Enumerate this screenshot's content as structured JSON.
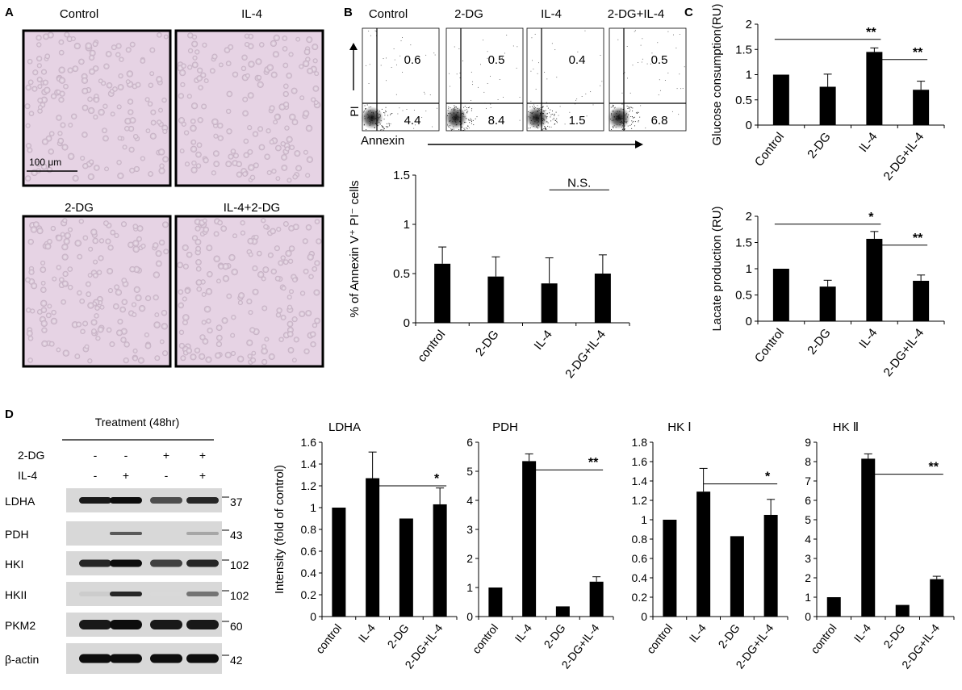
{
  "panels": {
    "a": "A",
    "b": "B",
    "c": "C",
    "d": "D"
  },
  "micrographs": {
    "labels": [
      "Control",
      "IL-4",
      "2-DG",
      "IL-4+2-DG"
    ],
    "scale_bar": "100 μm",
    "background_color": "#e6d3e4",
    "cell_color": "#c8b4c6"
  },
  "flow": {
    "titles": [
      "Control",
      "2-DG",
      "IL-4",
      "2-DG+IL-4"
    ],
    "upper_right": [
      "0.6",
      "0.5",
      "0.4",
      "0.5"
    ],
    "lower_right": [
      "4.4",
      "8.4",
      "1.5",
      "6.8"
    ],
    "y_axis_label": "PI",
    "x_axis_label": "Annexin"
  },
  "chart_data": [
    {
      "id": "annexin",
      "type": "bar",
      "ylabel": "% of Annexin V⁺ PI⁻ cells",
      "categories": [
        "control",
        "2-DG",
        "IL-4",
        "2-DG+IL-4"
      ],
      "values": [
        0.6,
        0.47,
        0.4,
        0.5
      ],
      "errors": [
        0.17,
        0.2,
        0.26,
        0.19
      ],
      "ylim": [
        0,
        1.5
      ],
      "yticks": [
        "0",
        "0.5",
        "1",
        "1.5"
      ],
      "ytick_values": [
        0,
        0.5,
        1,
        1.5
      ],
      "annotations": [
        {
          "text": "N.S.",
          "from": 2,
          "to": 3,
          "y": 1.35
        }
      ]
    },
    {
      "id": "glucose",
      "type": "bar",
      "ylabel": "Glucose consumption(RU)",
      "categories": [
        "Control",
        "2-DG",
        "IL-4",
        "2-DG+IL-4"
      ],
      "values": [
        1.0,
        0.76,
        1.45,
        0.7
      ],
      "errors": [
        0,
        0.25,
        0.08,
        0.17
      ],
      "ylim": [
        0,
        2
      ],
      "yticks": [
        "0",
        "0.5",
        "1",
        "1.5",
        "2"
      ],
      "ytick_values": [
        0,
        0.5,
        1,
        1.5,
        2
      ],
      "annotations": [
        {
          "text": "**",
          "from": 0,
          "to": 2,
          "y": 1.7
        },
        {
          "text": "**",
          "from": 2,
          "to": 3,
          "y": 1.3
        }
      ]
    },
    {
      "id": "lactate",
      "type": "bar",
      "ylabel": "Lacate production (RU)",
      "categories": [
        "Control",
        "2-DG",
        "IL-4",
        "2-DG+IL-4"
      ],
      "values": [
        1.0,
        0.66,
        1.57,
        0.77
      ],
      "errors": [
        0,
        0.12,
        0.14,
        0.11
      ],
      "ylim": [
        0,
        2
      ],
      "yticks": [
        "0",
        "0.5",
        "1",
        "1.5",
        "2"
      ],
      "ytick_values": [
        0,
        0.5,
        1,
        1.5,
        2
      ],
      "annotations": [
        {
          "text": "*",
          "from": 0,
          "to": 2,
          "y": 1.85
        },
        {
          "text": "**",
          "from": 2,
          "to": 3,
          "y": 1.45
        }
      ]
    },
    {
      "id": "ldha",
      "type": "bar",
      "title": "LDHA",
      "ylabel": "Intensity (fold of control)",
      "categories": [
        "control",
        "IL-4",
        "2-DG",
        "2-DG+IL-4"
      ],
      "values": [
        1.0,
        1.27,
        0.9,
        1.03
      ],
      "errors": [
        0,
        0.24,
        0,
        0.15
      ],
      "ylim": [
        0,
        1.6
      ],
      "yticks": [
        "0",
        "0.2",
        "0.4",
        "0.6",
        "0.8",
        "1",
        "1.2",
        "1.4",
        "1.6"
      ],
      "ytick_values": [
        0,
        0.2,
        0.4,
        0.6,
        0.8,
        1,
        1.2,
        1.4,
        1.6
      ],
      "annotations": [
        {
          "text": "*",
          "from": 1,
          "to": 3,
          "y": 1.2
        }
      ]
    },
    {
      "id": "pdh",
      "type": "bar",
      "title": "PDH",
      "ylabel": "",
      "categories": [
        "control",
        "IL-4",
        "2-DG",
        "2-DG+IL-4"
      ],
      "values": [
        1.0,
        5.35,
        0.35,
        1.2
      ],
      "errors": [
        0,
        0.25,
        0,
        0.17
      ],
      "ylim": [
        0,
        6
      ],
      "yticks": [
        "0",
        "1",
        "2",
        "3",
        "4",
        "5",
        "6"
      ],
      "ytick_values": [
        0,
        1,
        2,
        3,
        4,
        5,
        6
      ],
      "annotations": [
        {
          "text": "**",
          "from": 1,
          "to": 3,
          "y": 5.05
        }
      ]
    },
    {
      "id": "hk1",
      "type": "bar",
      "title": "HK Ⅰ",
      "ylabel": "",
      "categories": [
        "control",
        "IL-4",
        "2-DG",
        "2-DG+IL-4"
      ],
      "values": [
        1.0,
        1.29,
        0.83,
        1.05
      ],
      "errors": [
        0,
        0.24,
        0,
        0.16
      ],
      "ylim": [
        0,
        1.8
      ],
      "yticks": [
        "0",
        "0.2",
        "0.4",
        "0.6",
        "0.8",
        "1",
        "1.2",
        "1.4",
        "1.6",
        "1.8"
      ],
      "ytick_values": [
        0,
        0.2,
        0.4,
        0.6,
        0.8,
        1,
        1.2,
        1.4,
        1.6,
        1.8
      ],
      "annotations": [
        {
          "text": "*",
          "from": 1,
          "to": 3,
          "y": 1.37
        }
      ]
    },
    {
      "id": "hk2",
      "type": "bar",
      "title": "HK Ⅱ",
      "ylabel": "",
      "categories": [
        "control",
        "IL-4",
        "2-DG",
        "2-DG+IL-4"
      ],
      "values": [
        1.0,
        8.15,
        0.6,
        1.93
      ],
      "errors": [
        0,
        0.25,
        0,
        0.15
      ],
      "ylim": [
        0,
        9
      ],
      "yticks": [
        "0",
        "1",
        "2",
        "3",
        "4",
        "5",
        "6",
        "7",
        "8",
        "9"
      ],
      "ytick_values": [
        0,
        1,
        2,
        3,
        4,
        5,
        6,
        7,
        8,
        9
      ],
      "annotations": [
        {
          "text": "**",
          "from": 1,
          "to": 3,
          "y": 7.35
        }
      ]
    }
  ],
  "western": {
    "treatment_label": "Treatment (48hr)",
    "row_labels": [
      "2-DG",
      "IL-4"
    ],
    "two_dg_signs": [
      "-",
      "-",
      "+",
      "+"
    ],
    "il4_signs": [
      "-",
      "+",
      "-",
      "+"
    ],
    "bands": [
      "LDHA",
      "PDH",
      "HKI",
      "HKII",
      "PKM2",
      "β-actin"
    ],
    "markers": [
      "37",
      "43",
      "102",
      "102",
      "60",
      "42"
    ]
  }
}
